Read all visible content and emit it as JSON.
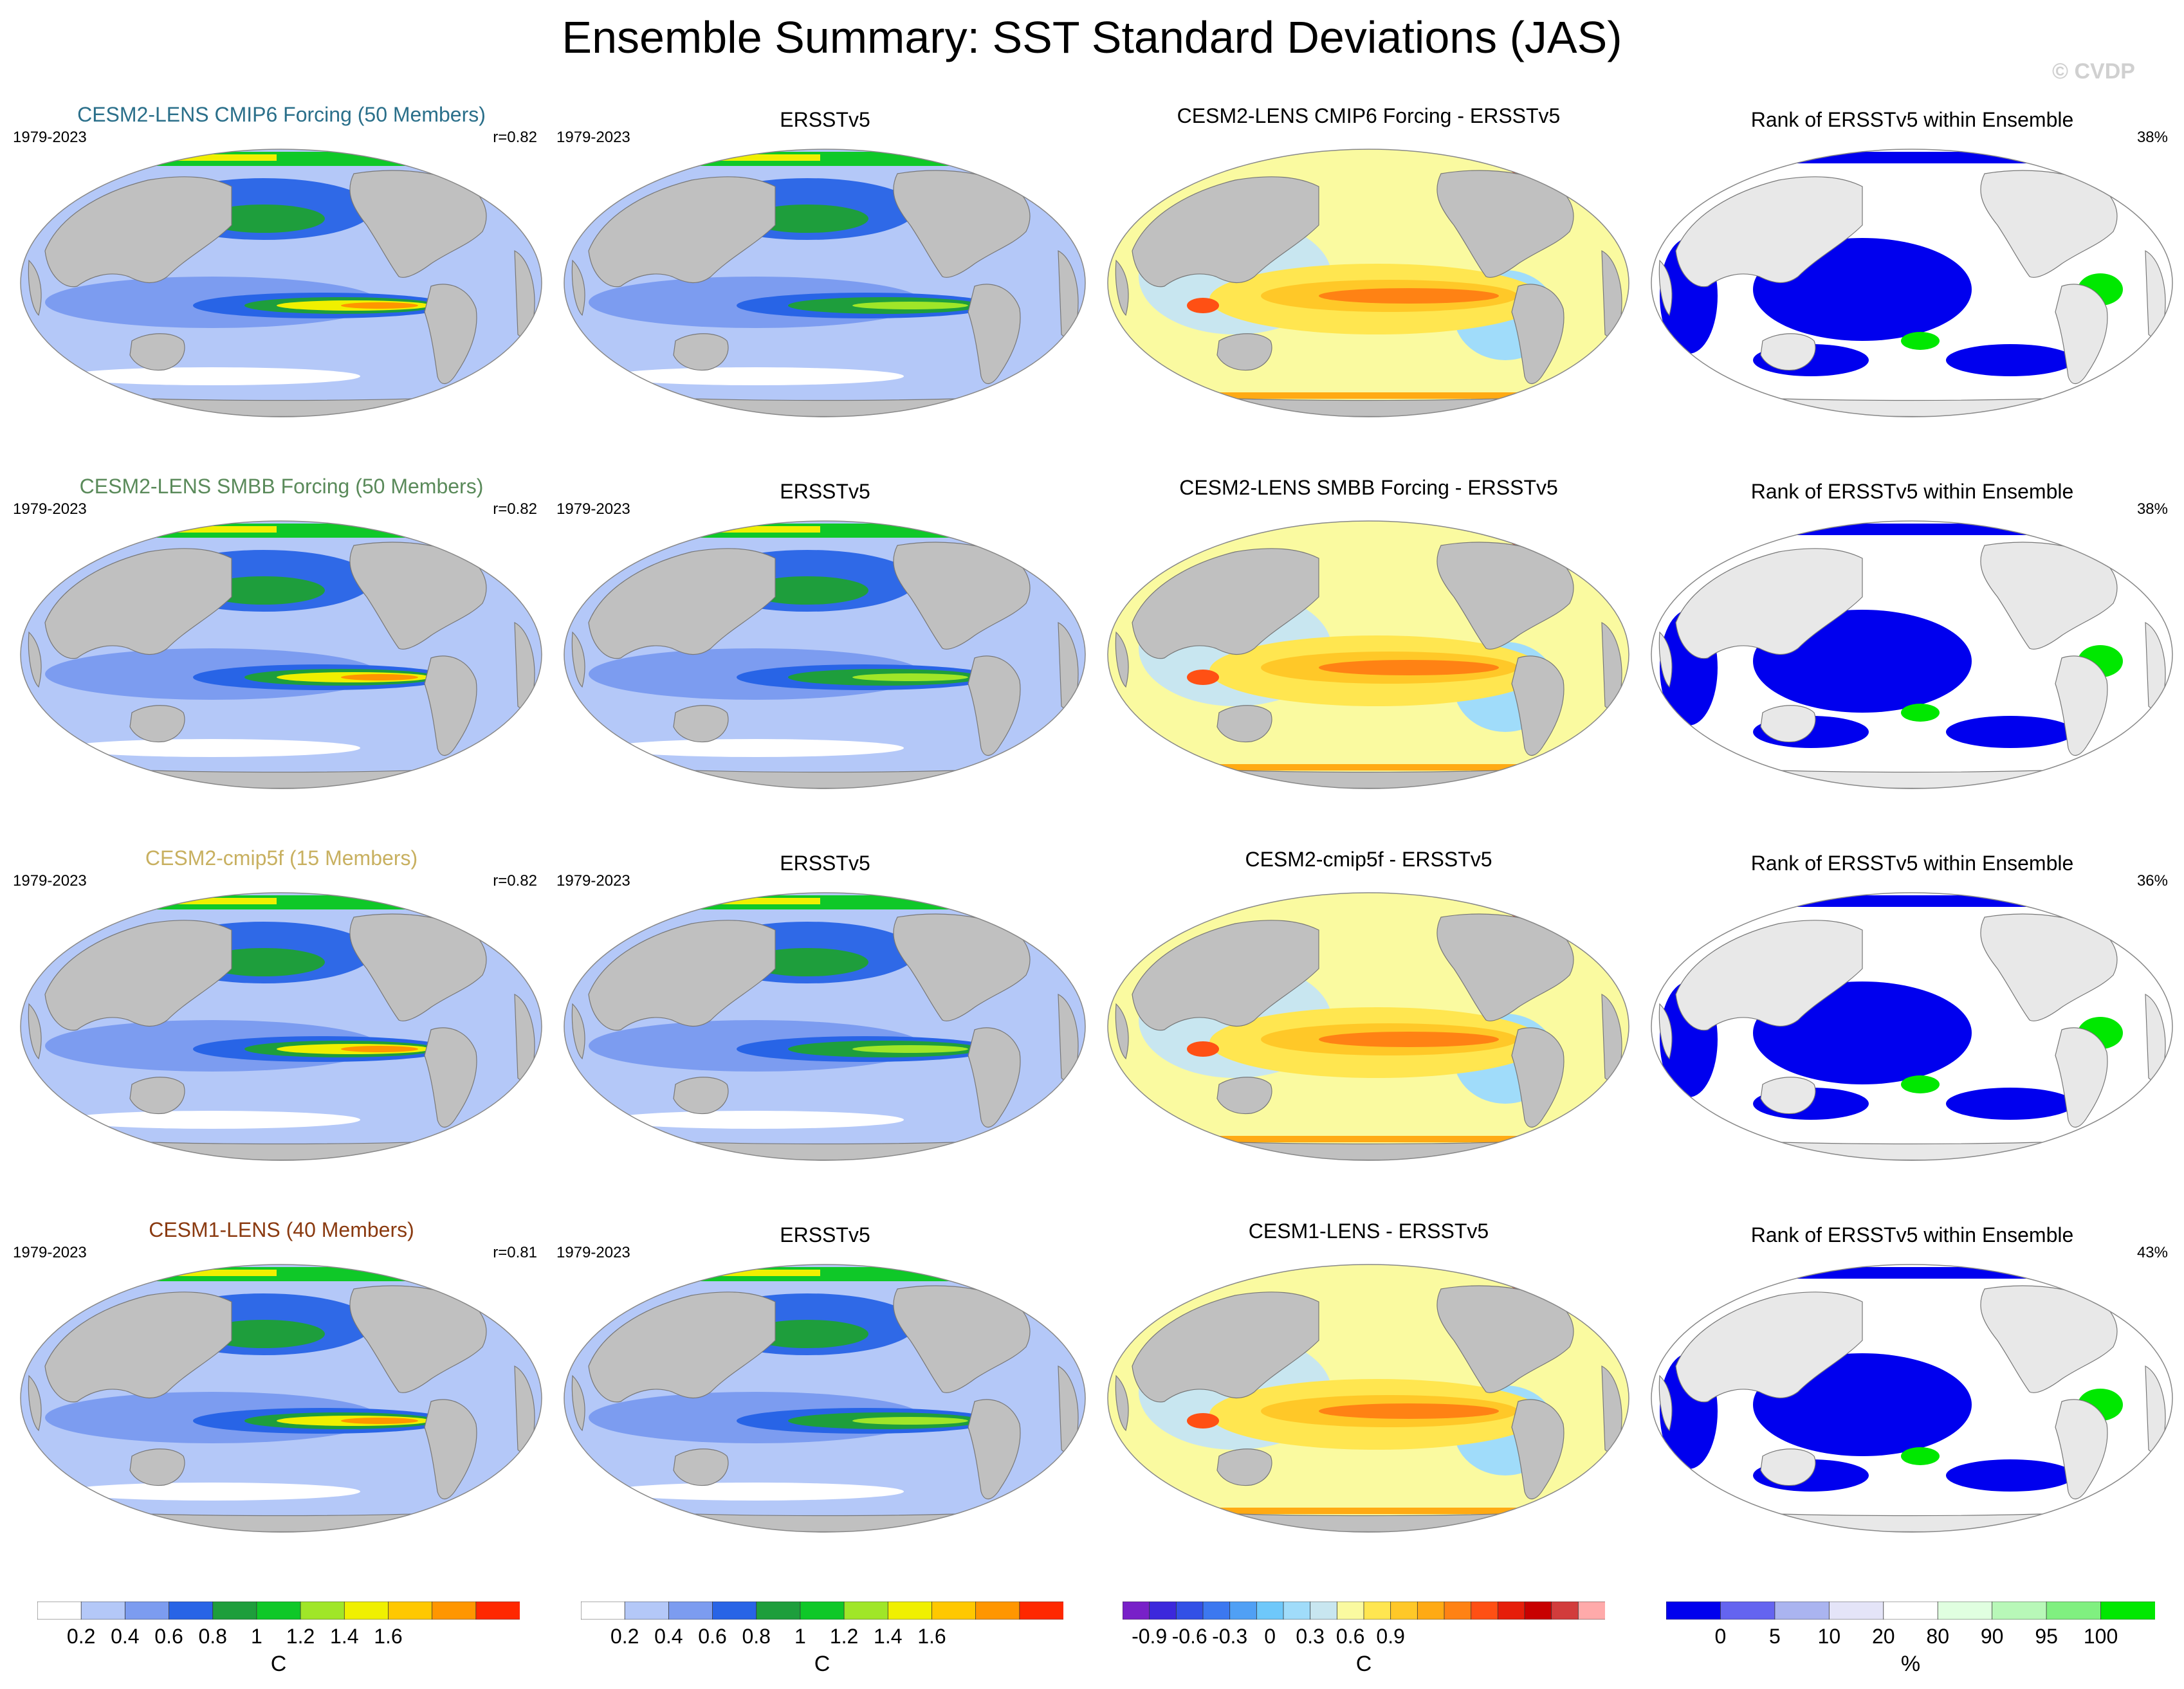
{
  "title": "Ensemble Summary: SST Standard Deviations (JAS)",
  "watermark": "© CVDP",
  "rows": [
    {
      "model_title": "CESM2-LENS CMIP6 Forcing (50 Members)",
      "model_title_color": "#2a6f8a",
      "period": "1979-2023",
      "corr": "r=0.82",
      "obs_title": "ERSSTv5",
      "obs_period": "1979-2023",
      "diff_title": "CESM2-LENS CMIP6 Forcing - ERSSTv5",
      "rank_title": "Rank of ERSSTv5 within Ensemble",
      "rank_pct": "38%"
    },
    {
      "model_title": "CESM2-LENS SMBB Forcing (50 Members)",
      "model_title_color": "#5a8a5a",
      "period": "1979-2023",
      "corr": "r=0.82",
      "obs_title": "ERSSTv5",
      "obs_period": "1979-2023",
      "diff_title": "CESM2-LENS SMBB Forcing - ERSSTv5",
      "rank_title": "Rank of ERSSTv5 within Ensemble",
      "rank_pct": "38%"
    },
    {
      "model_title": "CESM2-cmip5f (15 Members)",
      "model_title_color": "#c8b060",
      "period": "1979-2023",
      "corr": "r=0.82",
      "obs_title": "ERSSTv5",
      "obs_period": "1979-2023",
      "diff_title": "CESM2-cmip5f - ERSSTv5",
      "rank_title": "Rank of ERSSTv5 within Ensemble",
      "rank_pct": "36%"
    },
    {
      "model_title": "CESM1-LENS (40 Members)",
      "model_title_color": "#8a3a10",
      "period": "1979-2023",
      "corr": "r=0.81",
      "obs_title": "ERSSTv5",
      "obs_period": "1979-2023",
      "diff_title": "CESM1-LENS - ERSSTv5",
      "rank_title": "Rank of ERSSTv5 within Ensemble",
      "rank_pct": "43%"
    }
  ],
  "colorbars": {
    "std": {
      "colors": [
        "#ffffff",
        "#b4c8f8",
        "#7c9cf0",
        "#2864e6",
        "#1e9e3c",
        "#0fc828",
        "#a0e628",
        "#f0f000",
        "#ffc800",
        "#ff9600",
        "#ff2800"
      ],
      "ticks": [
        "0.2",
        "0.4",
        "0.6",
        "0.8",
        "1",
        "1.2",
        "1.4",
        "1.6"
      ],
      "units": "C"
    },
    "diff": {
      "colors": [
        "#7820c8",
        "#3c28dc",
        "#3250e6",
        "#3c78f0",
        "#50a0f5",
        "#6ec8fa",
        "#a0dcfa",
        "#c8e6f0",
        "#fafaa0",
        "#ffe650",
        "#ffc828",
        "#ffaa14",
        "#ff8214",
        "#ff5014",
        "#e61e0a",
        "#c80000",
        "#d23c3c",
        "#ffaaaa"
      ],
      "ticks": [
        "-0.9",
        "-0.6",
        "-0.3",
        "0",
        "0.3",
        "0.6",
        "0.9"
      ],
      "units": "C"
    },
    "rank": {
      "colors": [
        "#0000ee",
        "#6464f0",
        "#aab4f0",
        "#e4e4f8",
        "#ffffff",
        "#e0ffe0",
        "#b8f8b8",
        "#80f080",
        "#00e800"
      ],
      "ticks": [
        "0",
        "5",
        "10",
        "20",
        "80",
        "90",
        "95",
        "100"
      ],
      "units": "%"
    }
  }
}
